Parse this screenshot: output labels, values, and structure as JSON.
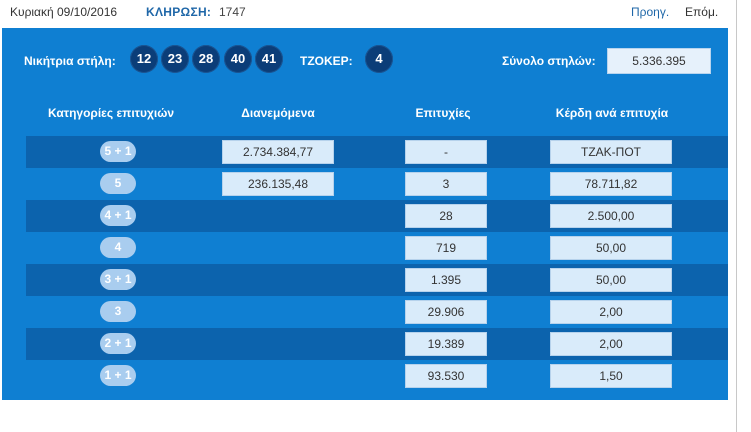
{
  "header": {
    "date": "Κυριακή 09/10/2016",
    "draw_label": "ΚΛΗΡΩΣΗ:",
    "draw_number": "1747",
    "prev_label": "Προηγ.",
    "next_label": "Επόμ."
  },
  "winning": {
    "label": "Νικήτρια στήλη:",
    "numbers": [
      "12",
      "23",
      "28",
      "40",
      "41"
    ],
    "joker_label": "ΤΖΟΚΕΡ:",
    "joker": "4",
    "total_label": "Σύνολο στηλών:",
    "total": "5.336.395"
  },
  "table": {
    "columns": [
      "Κατηγορίες επιτυχιών",
      "Διανεμόμενα",
      "Επιτυχίες",
      "Κέρδη ανά επιτυχία"
    ],
    "rows": [
      {
        "category": "5 + 1",
        "distributed": "2.734.384,77",
        "winners": "-",
        "prize": "ΤΖΑΚ-ΠΟΤ"
      },
      {
        "category": "5",
        "distributed": "236.135,48",
        "winners": "3",
        "prize": "78.711,82"
      },
      {
        "category": "4 + 1",
        "distributed": "",
        "winners": "28",
        "prize": "2.500,00"
      },
      {
        "category": "4",
        "distributed": "",
        "winners": "719",
        "prize": "50,00"
      },
      {
        "category": "3 + 1",
        "distributed": "",
        "winners": "1.395",
        "prize": "50,00"
      },
      {
        "category": "3",
        "distributed": "",
        "winners": "29.906",
        "prize": "2,00"
      },
      {
        "category": "2 + 1",
        "distributed": "",
        "winners": "19.389",
        "prize": "2,00"
      },
      {
        "category": "1 + 1",
        "distributed": "",
        "winners": "93.530",
        "prize": "1,50"
      }
    ]
  },
  "colors": {
    "panel": "#0f7fd2",
    "row_dark": "#0c63ad",
    "ball": "#0b3d78",
    "link": "#1f67a8"
  }
}
